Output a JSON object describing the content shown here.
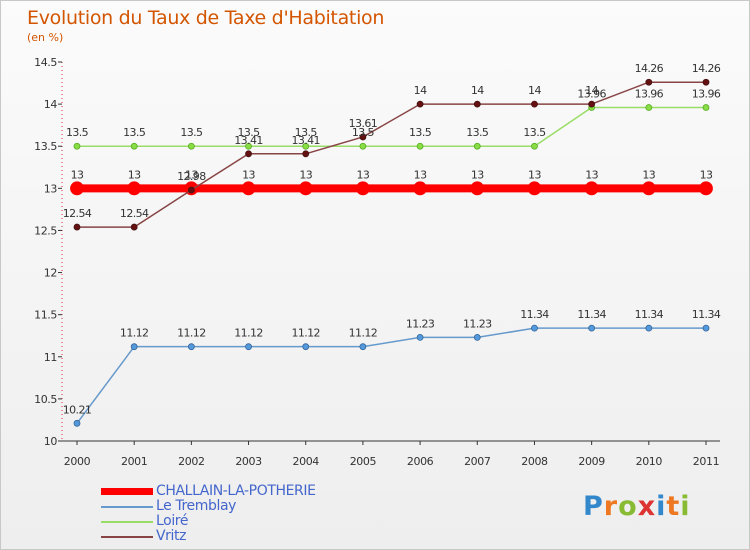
{
  "chart_data": {
    "type": "line",
    "title": "Evolution du Taux de Taxe d'Habitation",
    "subtitle": "(en %)",
    "xlabel": "",
    "ylabel": "(en %)",
    "ylim": [
      10,
      14.5
    ],
    "yticks": [
      "10",
      "10.5",
      "11",
      "11.5",
      "12",
      "12.5",
      "13",
      "13.5",
      "14",
      "14.5"
    ],
    "categories": [
      "2000",
      "2001",
      "2002",
      "2003",
      "2004",
      "2005",
      "2006",
      "2007",
      "2008",
      "2009",
      "2010",
      "2011"
    ],
    "series": [
      {
        "name": "CHALLAIN-LA-POTHERIE",
        "color": "#ff0000",
        "values": [
          13,
          13,
          13,
          13,
          13,
          13,
          13,
          13,
          13,
          13,
          13,
          13
        ],
        "labels": [
          "13",
          "13",
          "13",
          "13",
          "13",
          "13",
          "13",
          "13",
          "13",
          "13",
          "13",
          "13"
        ]
      },
      {
        "name": "Le Tremblay",
        "color": "#6699cc",
        "values": [
          10.21,
          11.12,
          11.12,
          11.12,
          11.12,
          11.12,
          11.23,
          11.23,
          11.34,
          11.34,
          11.34,
          11.34
        ],
        "labels": [
          "10.21",
          "11.12",
          "11.12",
          "11.12",
          "11.12",
          "11.12",
          "11.23",
          "11.23",
          "11.34",
          "11.34",
          "11.34",
          "11.34"
        ]
      },
      {
        "name": "Loiré",
        "color": "#99dd66",
        "values": [
          13.5,
          13.5,
          13.5,
          13.5,
          13.5,
          13.5,
          13.5,
          13.5,
          13.5,
          13.96,
          13.96,
          13.96
        ],
        "labels": [
          "13.5",
          "13.5",
          "13.5",
          "13.5",
          "13.5",
          "13.5",
          "13.5",
          "13.5",
          "13.5",
          "13.96",
          "13.96",
          "13.96"
        ]
      },
      {
        "name": "Vritz",
        "color": "#884444",
        "values": [
          12.54,
          12.54,
          12.98,
          13.41,
          13.41,
          13.61,
          14,
          14,
          14,
          14,
          14.26,
          14.26
        ],
        "labels": [
          "12.54",
          "12.54",
          "12.98",
          "13.41",
          "13.41",
          "13.61",
          "14",
          "14",
          "14",
          "14",
          "14.26",
          "14.26"
        ]
      }
    ],
    "grid": false,
    "legend_position": "bottom-left"
  },
  "branding": {
    "logo_letters": [
      "P",
      "r",
      "o",
      "x",
      "i",
      "t",
      "i"
    ],
    "logo_colors": [
      "#3388cc",
      "#ee7722",
      "#88bb33",
      "#dd3333",
      "#3388cc",
      "#ee7722",
      "#88bb33"
    ]
  }
}
